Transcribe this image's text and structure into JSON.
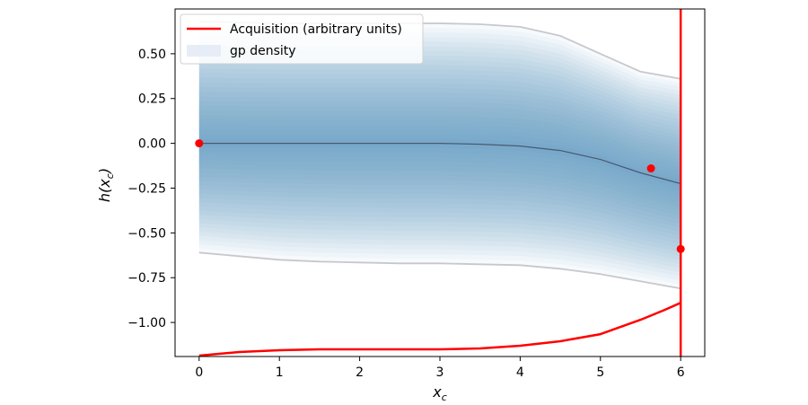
{
  "chart_data": {
    "type": "line",
    "xlabel": "x_c",
    "ylabel": "h(x_c)",
    "xlim": [
      -0.3,
      6.3
    ],
    "ylim": [
      -1.19,
      0.75
    ],
    "x_ticks": [
      0,
      1,
      2,
      3,
      4,
      5,
      6
    ],
    "x_tick_labels": [
      "0",
      "1",
      "2",
      "3",
      "4",
      "5",
      "6"
    ],
    "y_ticks": [
      0.5,
      0.25,
      0.0,
      -0.25,
      -0.5,
      -0.75,
      -1.0
    ],
    "y_tick_labels": [
      "0.50",
      "0.25",
      "0.00",
      "−0.25",
      "−0.50",
      "−0.75",
      "−1.00"
    ],
    "grid": false,
    "legend": {
      "placement": "upper-left",
      "entries": [
        {
          "label": "Acquisition (arbitrary units)",
          "color": "#ff0000",
          "kind": "line"
        },
        {
          "label": "gp density",
          "color": "#dde6f2",
          "kind": "patch"
        }
      ]
    },
    "series": [
      {
        "role": "gp-mean",
        "color": "#4a5a70",
        "x": [
          0,
          0.5,
          1,
          1.5,
          2,
          2.5,
          3,
          3.5,
          4,
          4.5,
          5,
          5.5,
          6
        ],
        "y": [
          0.0,
          0.0,
          0.0,
          0.0,
          0.0,
          0.0,
          0.0,
          -0.005,
          -0.015,
          -0.04,
          -0.09,
          -0.165,
          -0.225
        ]
      },
      {
        "role": "gp-upper-bound",
        "color": "#c8c8cc",
        "x": [
          0,
          0.5,
          1,
          1.5,
          2,
          2.5,
          3,
          3.5,
          4,
          4.5,
          5,
          5.5,
          6
        ],
        "y": [
          0.68,
          0.675,
          0.67,
          0.67,
          0.67,
          0.67,
          0.67,
          0.665,
          0.65,
          0.6,
          0.5,
          0.4,
          0.36
        ]
      },
      {
        "role": "gp-lower-bound",
        "color": "#c8c8cc",
        "x": [
          0,
          0.5,
          1,
          1.5,
          2,
          2.5,
          3,
          3.5,
          4,
          4.5,
          5,
          5.5,
          6
        ],
        "y": [
          -0.61,
          -0.63,
          -0.65,
          -0.66,
          -0.665,
          -0.67,
          -0.67,
          -0.675,
          -0.68,
          -0.7,
          -0.73,
          -0.77,
          -0.81
        ]
      },
      {
        "name": "Acquisition (arbitrary units)",
        "role": "acquisition",
        "color": "#ff0000",
        "x": [
          0,
          0.5,
          1,
          1.5,
          2,
          2.5,
          3,
          3.5,
          4,
          4.5,
          5,
          5.5,
          5.8,
          6
        ],
        "y": [
          -1.185,
          -1.165,
          -1.155,
          -1.15,
          -1.15,
          -1.15,
          -1.15,
          -1.145,
          -1.13,
          -1.105,
          -1.065,
          -0.985,
          -0.93,
          -0.89
        ]
      }
    ],
    "vertical_line": {
      "x": 6,
      "color": "#ff0000"
    },
    "observations": {
      "color": "#ff0000",
      "x": [
        0,
        5.63,
        6
      ],
      "y": [
        0.0,
        -0.14,
        -0.59
      ]
    }
  }
}
